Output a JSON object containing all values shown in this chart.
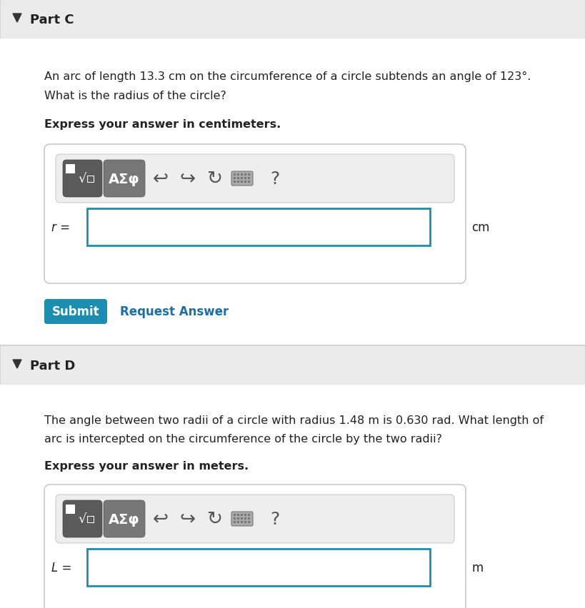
{
  "bg_color": "#f4f4f4",
  "white": "#ffffff",
  "header_bg": "#ebebeb",
  "body_bg": "#ffffff",
  "part_c_label": "Part C",
  "part_d_label": "Part D",
  "part_c_text_line1": "An arc of length 13.3 cm on the circumference of a circle subtends an angle of 123°.",
  "part_c_text_line2": "What is the radius of the circle?",
  "part_c_bold": "Express your answer in centimeters.",
  "part_c_var": "r =",
  "part_c_unit": "cm",
  "part_d_text_line1": "The angle between two radii of a circle with radius 1.48 m is 0.630 rad. What length of",
  "part_d_text_line2": "arc is intercepted on the circumference of the circle by the two radii?",
  "part_d_bold": "Express your answer in meters.",
  "part_d_var": "L =",
  "part_d_unit": "m",
  "submit_bg": "#1b8db0",
  "submit_text": "Submit",
  "request_text": "Request Answer",
  "request_color": "#1a6fa8",
  "input_border": "#1b8db0",
  "text_color": "#222222",
  "fig_w": 8.19,
  "fig_h": 8.53,
  "dpi": 100
}
